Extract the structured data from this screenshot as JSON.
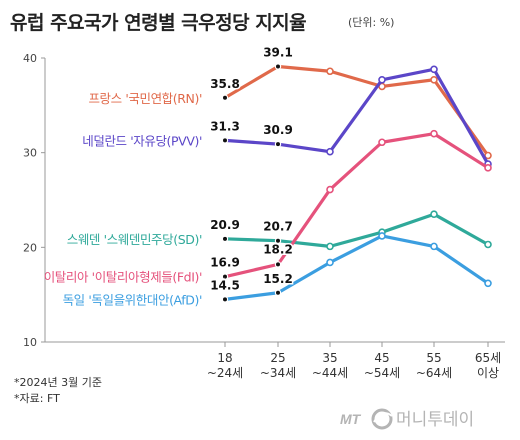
{
  "chart_data": {
    "type": "line",
    "title": "유럽 주요국가 연령별 극우정당 지지율",
    "unit": "(단위: %)",
    "categories": [
      "18\n~24세",
      "25\n~34세",
      "35\n~44세",
      "45\n~54세",
      "55\n~64세",
      "65세\n이상"
    ],
    "ylim": [
      10,
      40
    ],
    "yticks": [
      10,
      20,
      30,
      40
    ],
    "grid": false,
    "series": [
      {
        "name": "프랑스 '국민연합(RN)'",
        "color": "#e0694a",
        "values": [
          35.8,
          39.1,
          38.6,
          37.0,
          37.7,
          29.7
        ],
        "labels": [
          "35.8",
          "39.1",
          "",
          "",
          "",
          ""
        ]
      },
      {
        "name": "네덜란드 '자유당(PVV)'",
        "color": "#5b46c8",
        "values": [
          31.3,
          30.9,
          30.1,
          37.7,
          38.8,
          28.8
        ],
        "labels": [
          "31.3",
          "30.9",
          "",
          "",
          "",
          ""
        ]
      },
      {
        "name": "스웨덴 '스웨덴민주당(SD)'",
        "color": "#2fa99a",
        "values": [
          20.9,
          20.7,
          20.1,
          21.6,
          23.5,
          20.3
        ],
        "labels": [
          "20.9",
          "20.7",
          "",
          "",
          "",
          ""
        ]
      },
      {
        "name": "이탈리아 '이탈리아형제들(FdI)'",
        "color": "#e5527c",
        "values": [
          16.9,
          18.2,
          26.1,
          31.1,
          32.0,
          28.4
        ],
        "labels": [
          "16.9",
          "18.2",
          "",
          "",
          "",
          ""
        ]
      },
      {
        "name": "독일 '독일을위한대안(AfD)'",
        "color": "#3b9ee0",
        "values": [
          14.5,
          15.2,
          18.4,
          21.2,
          20.1,
          16.2
        ],
        "labels": [
          "14.5",
          "15.2",
          "",
          "",
          "",
          ""
        ]
      }
    ]
  },
  "notes": {
    "date": "*2024년 3월 기준",
    "source": "*자료: FT"
  },
  "brand": {
    "logo_text": "MT",
    "name": "머니투데이"
  }
}
